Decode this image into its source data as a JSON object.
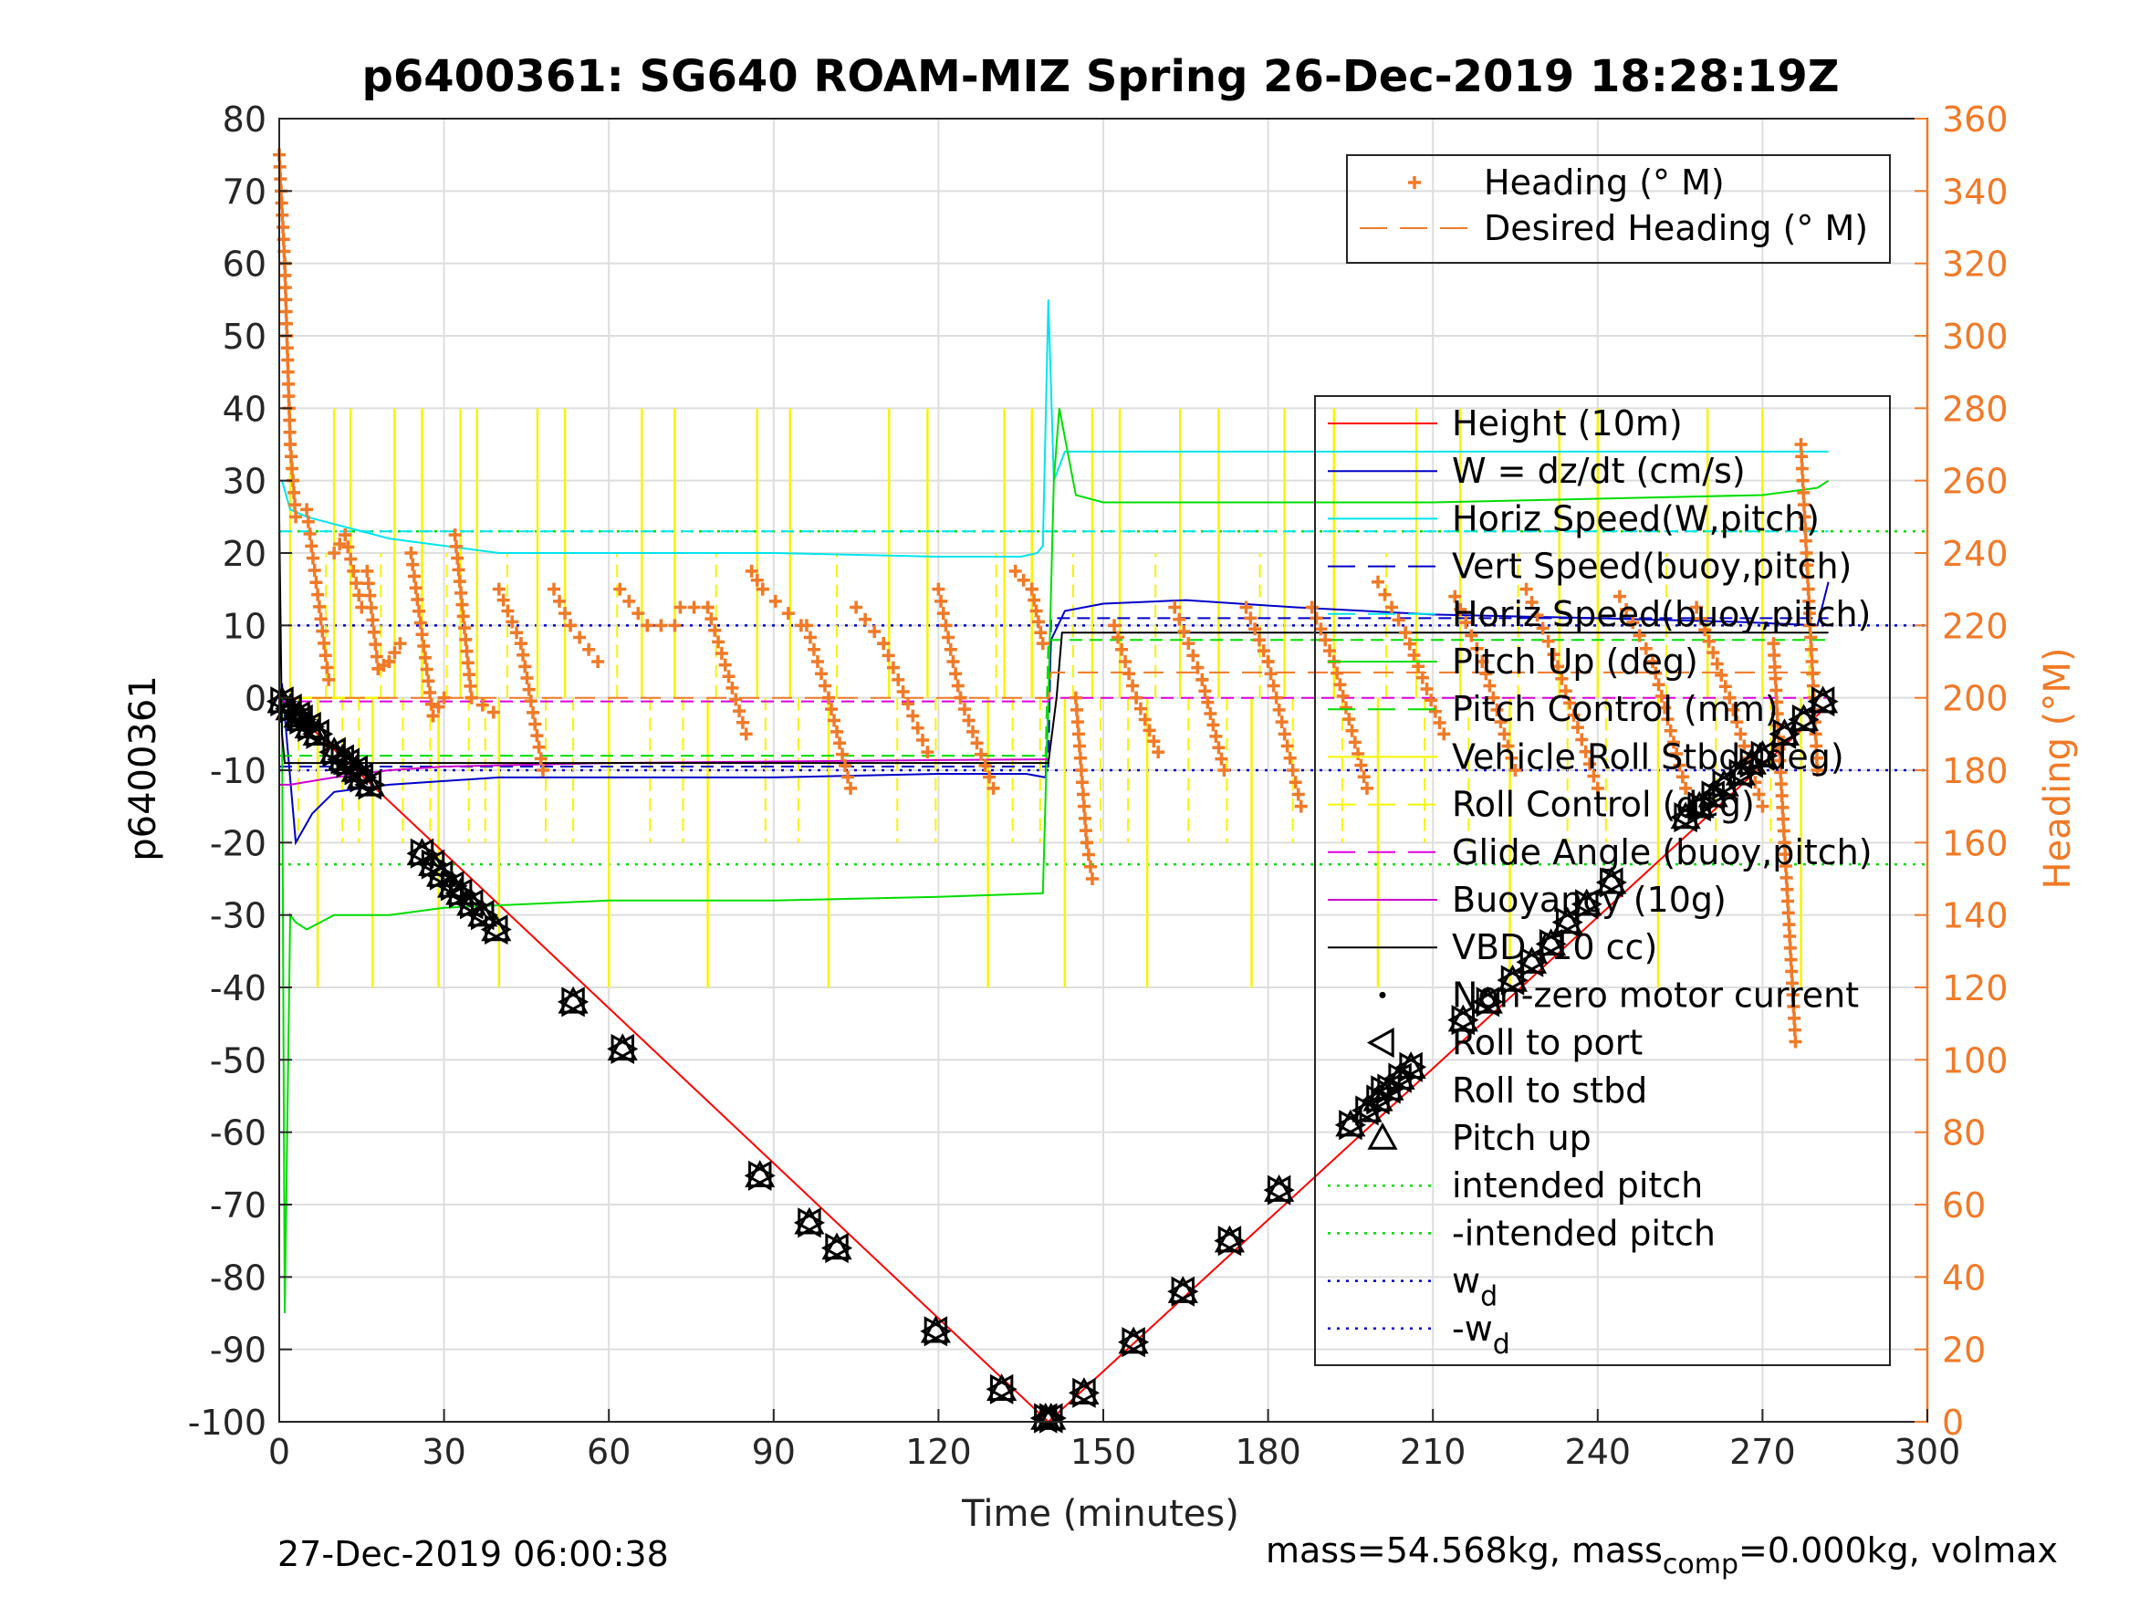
{
  "chart_data": {
    "type": "line",
    "title": "p6400361: SG640 ROAM-MIZ Spring 26-Dec-2019 18:28:19Z",
    "xlabel": "Time (minutes)",
    "ylabel_left": "p6400361",
    "ylabel_right": "Heading (°M)",
    "footer_left": "27-Dec-2019 06:00:38",
    "footer_right": {
      "pre": "mass=54.568kg, mass",
      "sub": "comp",
      "post": "=0.000kg, volmax"
    },
    "xlim": [
      0,
      300
    ],
    "ylim_left": [
      -100,
      80
    ],
    "ylim_right": [
      0,
      360
    ],
    "xticks": [
      0,
      30,
      60,
      90,
      120,
      150,
      180,
      210,
      240,
      270,
      300
    ],
    "yticks_left": [
      80,
      70,
      60,
      50,
      40,
      30,
      20,
      10,
      0,
      -10,
      -20,
      -30,
      -40,
      -50,
      -60,
      -70,
      -80,
      -90,
      -100
    ],
    "yticks_right": [
      360,
      340,
      320,
      300,
      280,
      260,
      240,
      220,
      200,
      180,
      160,
      140,
      120,
      100,
      80,
      60,
      40,
      20,
      0
    ],
    "grid": true,
    "colors": {
      "right_axis": "#f07a28",
      "height": "#ff0000",
      "w": "#0000c8",
      "horiz": "#00e5ee",
      "pitch": "#00dd00",
      "roll": "#f5f500",
      "glide": "#dd00dd",
      "buoy": "#cc00cc",
      "vbd": "#000000"
    },
    "legend_top": [
      {
        "label": "Heading (° M)",
        "style": "plus",
        "color": "#f07a28"
      },
      {
        "label": "Desired Heading (° M)",
        "style": "dash",
        "color": "#f07a28"
      }
    ],
    "legend_main": [
      {
        "label": "Height (10m)",
        "style": "solid",
        "color": "#ff0000"
      },
      {
        "label": "W = dz/dt (cm/s)",
        "style": "solid",
        "color": "#0000c8"
      },
      {
        "label": "Horiz Speed(W,pitch)",
        "style": "solid",
        "color": "#00e5ee"
      },
      {
        "label": "Vert Speed(buoy,pitch)",
        "style": "dash",
        "color": "#0000c8"
      },
      {
        "label": "Horiz Speed(buoy,pitch)",
        "style": "dash",
        "color": "#00e5ee"
      },
      {
        "label": "Pitch Up (deg)",
        "style": "solid",
        "color": "#00dd00"
      },
      {
        "label": "Pitch Control (mm)",
        "style": "dash",
        "color": "#00dd00"
      },
      {
        "label": "Vehicle Roll Stbd (deg)",
        "style": "solid",
        "color": "#f5f500"
      },
      {
        "label": "Roll Control (deg)",
        "style": "dash",
        "color": "#f5f500"
      },
      {
        "label": "Glide Angle (buoy,pitch)",
        "style": "dash",
        "color": "#dd00dd"
      },
      {
        "label": "Buoyancy (10g)",
        "style": "solid",
        "color": "#cc00cc"
      },
      {
        "label": "VBD (10 cc)",
        "style": "solid",
        "color": "#000000"
      },
      {
        "label": "Non-zero motor current",
        "style": "dot",
        "color": "#000000"
      },
      {
        "label": "Roll to port",
        "style": "tri-left",
        "color": "#000000"
      },
      {
        "label": "Roll to stbd",
        "style": "tri-right",
        "color": "#000000"
      },
      {
        "label": "Pitch up",
        "style": "tri-up",
        "color": "#000000"
      },
      {
        "label": "intended pitch",
        "style": "dotted",
        "color": "#00dd00"
      },
      {
        "label": "-intended pitch",
        "style": "dotted",
        "color": "#00dd00"
      },
      {
        "label": "w",
        "sub": "d",
        "style": "dotted",
        "color": "#0000c8"
      },
      {
        "label": "-w",
        "sub": "d",
        "style": "dotted",
        "color": "#0000c8"
      }
    ],
    "series": [
      {
        "key": "height",
        "name": "Height (10m)",
        "x": [
          0,
          140,
          282
        ],
        "y": [
          0,
          -100,
          -1
        ]
      },
      {
        "key": "w",
        "name": "W = dz/dt (cm/s)",
        "x": [
          0.5,
          3,
          6,
          10,
          20,
          40,
          60,
          90,
          120,
          136,
          139.5,
          140.5,
          143,
          150,
          165,
          185,
          210,
          240,
          265,
          280,
          282
        ],
        "y": [
          2,
          -20,
          -16,
          -13,
          -12,
          -11,
          -11,
          -11,
          -10.5,
          -10.5,
          -11,
          8,
          12,
          13,
          13.5,
          12.5,
          11.5,
          11,
          10.5,
          10,
          16
        ]
      },
      {
        "key": "horiz",
        "name": "Horiz Speed(W,pitch)",
        "x": [
          0.5,
          2,
          5,
          10,
          20,
          30,
          40,
          60,
          90,
          120,
          135,
          138,
          139,
          140,
          141,
          143,
          150,
          200,
          250,
          282
        ],
        "y": [
          30,
          26,
          25,
          24,
          22,
          21,
          20,
          20,
          20,
          19.5,
          19.5,
          20,
          21,
          55,
          30,
          34,
          34,
          34,
          34,
          34
        ]
      },
      {
        "key": "vert_b",
        "name": "Vert Speed(buoy,pitch)",
        "x": [
          0,
          140,
          140.5,
          282
        ],
        "y": [
          -9.5,
          -9.5,
          11,
          11
        ]
      },
      {
        "key": "horiz_b",
        "name": "Horiz Speed(buoy,pitch)",
        "x": [
          0,
          140,
          140.5,
          282
        ],
        "y": [
          23,
          23,
          23,
          23
        ]
      },
      {
        "key": "pitch",
        "name": "Pitch Up (deg)",
        "x": [
          0.5,
          1,
          2,
          3,
          5,
          10,
          20,
          30,
          60,
          90,
          120,
          139,
          140,
          141,
          142,
          145,
          150,
          180,
          210,
          240,
          270,
          280,
          282
        ],
        "y": [
          0,
          -85,
          -30,
          -31,
          -32,
          -30,
          -30,
          -29,
          -28,
          -28,
          -27.5,
          -27,
          0,
          30,
          40,
          28,
          27,
          27,
          27,
          27.5,
          28,
          29,
          30
        ]
      },
      {
        "key": "pitch_ctrl",
        "name": "Pitch Control (mm)",
        "x": [
          0,
          139.5,
          140,
          282
        ],
        "y": [
          -8,
          -8,
          8,
          8
        ]
      },
      {
        "key": "glide",
        "name": "Glide Angle (buoy,pitch)",
        "x": [
          0,
          140,
          140.5,
          282
        ],
        "y": [
          -0.5,
          -0.5,
          0,
          0
        ]
      },
      {
        "key": "buoy",
        "name": "Buoyancy (10g)",
        "x": [
          0,
          2,
          10,
          20,
          30,
          60,
          90,
          120,
          140
        ],
        "y": [
          -12,
          -12,
          -11,
          -10,
          -9.5,
          -9,
          -8.8,
          -8.6,
          -8.5
        ]
      },
      {
        "key": "vbd",
        "name": "VBD (10 cc)",
        "x": [
          0,
          0.5,
          1,
          3,
          140,
          141.5,
          142.5,
          282
        ],
        "y": [
          25,
          -5,
          -9,
          -9,
          -9,
          0,
          9,
          9
        ]
      },
      {
        "key": "roll",
        "name": "Vehicle Roll Stbd (deg)",
        "x": [
          0,
          1,
          2,
          3,
          4,
          5,
          6,
          7,
          8,
          9,
          10,
          11,
          12,
          13,
          14,
          15,
          16,
          17,
          18,
          19,
          20
        ],
        "y": [
          0,
          0,
          0,
          0,
          0,
          0,
          0,
          0,
          0,
          0,
          0,
          0,
          0,
          0,
          0,
          0,
          0,
          0,
          0,
          0,
          0
        ]
      }
    ],
    "roll_spikes_x": [
      2,
      7,
      10,
      13,
      17,
      21,
      26,
      29,
      33,
      36,
      40,
      47,
      52,
      60,
      66,
      72,
      78,
      87,
      93,
      100,
      111,
      118,
      129,
      132,
      137,
      143,
      148,
      153,
      158,
      164,
      171,
      177,
      183,
      192,
      200,
      207,
      215,
      224,
      233,
      240,
      251,
      260,
      270,
      277
    ],
    "reference_lines": [
      {
        "name": "intended pitch",
        "y": 23
      },
      {
        "name": "-intended pitch",
        "y": -23
      },
      {
        "name": "w_d",
        "y": 10
      },
      {
        "name": "-w_d",
        "y": -10
      }
    ],
    "desired_heading": {
      "x": [
        0,
        140,
        140.5,
        282
      ],
      "y": [
        200,
        200,
        207,
        207
      ]
    },
    "heading_segments": [
      {
        "x": [
          0,
          1,
          2,
          3
        ],
        "y": [
          350,
          320,
          270,
          250
        ]
      },
      {
        "x": [
          5,
          9
        ],
        "y": [
          252,
          205
        ]
      },
      {
        "x": [
          10,
          12,
          15
        ],
        "y": [
          240,
          245,
          225
        ]
      },
      {
        "x": [
          16,
          18,
          20,
          22
        ],
        "y": [
          235,
          208,
          210,
          215
        ]
      },
      {
        "x": [
          24,
          28,
          30
        ],
        "y": [
          240,
          195,
          200
        ]
      },
      {
        "x": [
          32,
          35,
          39
        ],
        "y": [
          245,
          200,
          196
        ]
      },
      {
        "x": [
          40,
          44,
          48
        ],
        "y": [
          230,
          215,
          180
        ]
      },
      {
        "x": [
          50,
          53,
          58
        ],
        "y": [
          230,
          220,
          210
        ]
      },
      {
        "x": [
          62,
          67,
          72
        ],
        "y": [
          230,
          220,
          220
        ]
      },
      {
        "x": [
          73,
          78,
          85
        ],
        "y": [
          225,
          225,
          190
        ]
      },
      {
        "x": [
          86,
          88,
          95
        ],
        "y": [
          235,
          230,
          220
        ]
      },
      {
        "x": [
          96,
          100,
          104
        ],
        "y": [
          220,
          200,
          175
        ]
      },
      {
        "x": [
          105,
          110,
          118
        ],
        "y": [
          225,
          215,
          185
        ]
      },
      {
        "x": [
          120,
          124,
          130
        ],
        "y": [
          230,
          200,
          175
        ]
      },
      {
        "x": [
          134,
          137,
          139
        ],
        "y": [
          235,
          230,
          215
        ]
      },
      {
        "x": [
          145,
          147,
          148
        ],
        "y": [
          200,
          160,
          150
        ]
      },
      {
        "x": [
          152,
          156,
          160
        ],
        "y": [
          220,
          200,
          185
        ]
      },
      {
        "x": [
          163,
          168,
          172
        ],
        "y": [
          225,
          205,
          180
        ]
      },
      {
        "x": [
          176,
          180,
          186
        ],
        "y": [
          225,
          210,
          170
        ]
      },
      {
        "x": [
          188,
          192,
          198
        ],
        "y": [
          225,
          210,
          175
        ]
      },
      {
        "x": [
          200,
          205,
          212
        ],
        "y": [
          232,
          218,
          190
        ]
      },
      {
        "x": [
          214,
          219,
          225
        ],
        "y": [
          228,
          210,
          180
        ]
      },
      {
        "x": [
          227,
          232,
          240
        ],
        "y": [
          230,
          212,
          175
        ]
      },
      {
        "x": [
          244,
          250,
          256
        ],
        "y": [
          228,
          210,
          175
        ]
      },
      {
        "x": [
          258,
          264,
          270
        ],
        "y": [
          225,
          200,
          170
        ]
      },
      {
        "x": [
          272,
          274,
          276
        ],
        "y": [
          215,
          160,
          105
        ]
      },
      {
        "x": [
          277,
          280
        ],
        "y": [
          270,
          180
        ]
      }
    ],
    "markers": {
      "x": [
        0.5,
        2,
        3.5,
        4,
        5.5,
        7,
        10,
        11.5,
        12.5,
        14,
        15,
        16.5,
        26,
        28,
        29.5,
        31.5,
        33,
        35,
        37,
        39.5,
        53.5,
        62.5,
        87.5,
        96.5,
        101.5,
        119.5,
        131.5,
        139.5,
        140.5,
        146.5,
        155.5,
        164.5,
        173,
        182,
        195,
        198,
        200,
        202,
        204,
        206,
        215.5,
        220,
        224.5,
        228,
        231.5,
        234.5,
        238,
        242.5,
        256,
        258.5,
        261,
        263,
        266,
        268,
        270,
        274,
        277.5,
        281
      ],
      "y": [
        -0.5,
        -1.5,
        -2.5,
        -3,
        -4,
        -5,
        -7.5,
        -8.5,
        -9,
        -10,
        -11,
        -12,
        -21.5,
        -23,
        -24.5,
        -26,
        -27,
        -28.5,
        -30,
        -32,
        -42,
        -48.5,
        -66,
        -72.5,
        -76,
        -87.5,
        -95.5,
        -99.5,
        -99.5,
        -96,
        -89,
        -82,
        -75,
        -68,
        -59,
        -57,
        -55.5,
        -54,
        -52.5,
        -51,
        -44.5,
        -42,
        -39,
        -36.5,
        -34,
        -31,
        -28.5,
        -25.5,
        -16.5,
        -15,
        -13.5,
        -12,
        -10.5,
        -9,
        -8,
        -5,
        -3,
        -0.5
      ]
    }
  }
}
